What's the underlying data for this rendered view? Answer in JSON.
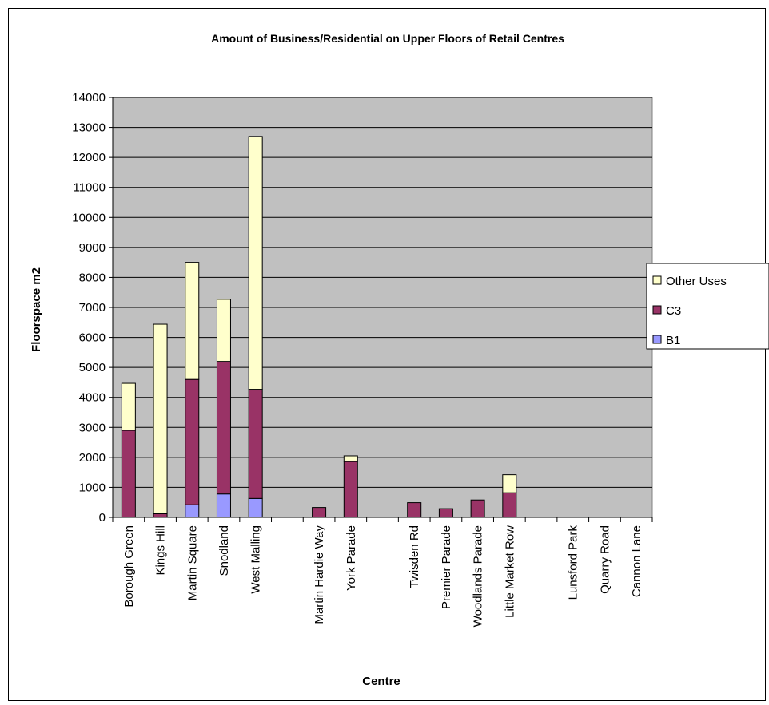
{
  "chart_data": {
    "type": "bar",
    "stacked": true,
    "title": "Amount of Business/Residential on Upper Floors of Retail Centres",
    "xlabel": "Centre",
    "ylabel": "Floorspace m2",
    "ylim": [
      0,
      14000
    ],
    "ytick_step": 1000,
    "grid": true,
    "legend_position": "right",
    "categories": [
      "Borough Green",
      "Kings Hill",
      "Martin Square",
      "Snodland",
      "West Malling",
      "",
      "Martin Hardie Way",
      "York Parade",
      "",
      "Twisden Rd",
      "Premier Parade",
      "Woodlands Parade",
      "Little Market Row",
      "",
      "Lunsford Park",
      "Quarry Road",
      "Cannon Lane"
    ],
    "series": [
      {
        "name": "B1",
        "color": "#9999ff",
        "values": [
          0,
          0,
          420,
          780,
          630,
          0,
          0,
          0,
          0,
          0,
          0,
          0,
          0,
          0,
          0,
          0,
          0
        ]
      },
      {
        "name": "C3",
        "color": "#993366",
        "values": [
          2900,
          120,
          4180,
          4420,
          3640,
          0,
          330,
          1860,
          0,
          490,
          290,
          580,
          820,
          0,
          0,
          0,
          0
        ]
      },
      {
        "name": "Other Uses",
        "color": "#ffffcc",
        "values": [
          1570,
          6320,
          3900,
          2070,
          8430,
          0,
          0,
          190,
          0,
          0,
          0,
          0,
          600,
          0,
          0,
          0,
          0
        ]
      }
    ],
    "legend_order": [
      "Other Uses",
      "C3",
      "B1"
    ],
    "plot_background": "#c0c0c0"
  }
}
